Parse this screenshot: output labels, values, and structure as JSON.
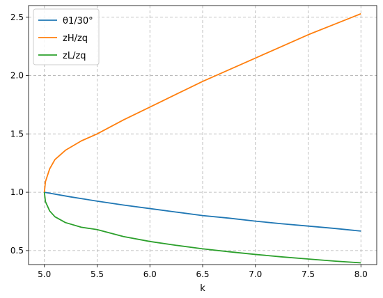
{
  "chart_data": {
    "type": "line",
    "xlabel": "k",
    "ylabel": "",
    "title": "",
    "xlim": [
      4.85,
      8.15
    ],
    "ylim": [
      0.38,
      2.6
    ],
    "xticks": [
      5.0,
      5.5,
      6.0,
      6.5,
      7.0,
      7.5,
      8.0
    ],
    "xtick_labels": [
      "5.0",
      "5.5",
      "6.0",
      "6.5",
      "7.0",
      "7.5",
      "8.0"
    ],
    "yticks": [
      0.5,
      1.0,
      1.5,
      2.0,
      2.5
    ],
    "ytick_labels": [
      "0.5",
      "1.0",
      "1.5",
      "2.0",
      "2.5"
    ],
    "grid": true,
    "legend_position": "top-left",
    "series": [
      {
        "name": "θ1/30°",
        "color": "#1f77b4",
        "x": [
          5.0,
          5.25,
          5.5,
          5.75,
          6.0,
          6.25,
          6.5,
          6.75,
          7.0,
          7.25,
          7.5,
          7.75,
          8.0
        ],
        "y": [
          1.0,
          0.96,
          0.924,
          0.89,
          0.86,
          0.83,
          0.8,
          0.778,
          0.752,
          0.73,
          0.71,
          0.69,
          0.667
        ]
      },
      {
        "name": "zH/zq",
        "color": "#ff7f0e",
        "x": [
          5.0,
          5.01,
          5.05,
          5.1,
          5.2,
          5.35,
          5.5,
          5.75,
          6.0,
          6.25,
          6.5,
          6.75,
          7.0,
          7.25,
          7.5,
          7.75,
          8.0
        ],
        "y": [
          1.0,
          1.09,
          1.2,
          1.28,
          1.36,
          1.44,
          1.5,
          1.62,
          1.73,
          1.84,
          1.95,
          2.05,
          2.15,
          2.25,
          2.35,
          2.44,
          2.53
        ]
      },
      {
        "name": "zL/zq",
        "color": "#2ca02c",
        "x": [
          5.0,
          5.01,
          5.05,
          5.1,
          5.2,
          5.35,
          5.5,
          5.75,
          6.0,
          6.25,
          6.5,
          6.75,
          7.0,
          7.25,
          7.5,
          7.75,
          8.0
        ],
        "y": [
          1.0,
          0.92,
          0.84,
          0.79,
          0.74,
          0.7,
          0.68,
          0.62,
          0.578,
          0.545,
          0.515,
          0.49,
          0.467,
          0.446,
          0.428,
          0.41,
          0.395
        ]
      }
    ]
  }
}
